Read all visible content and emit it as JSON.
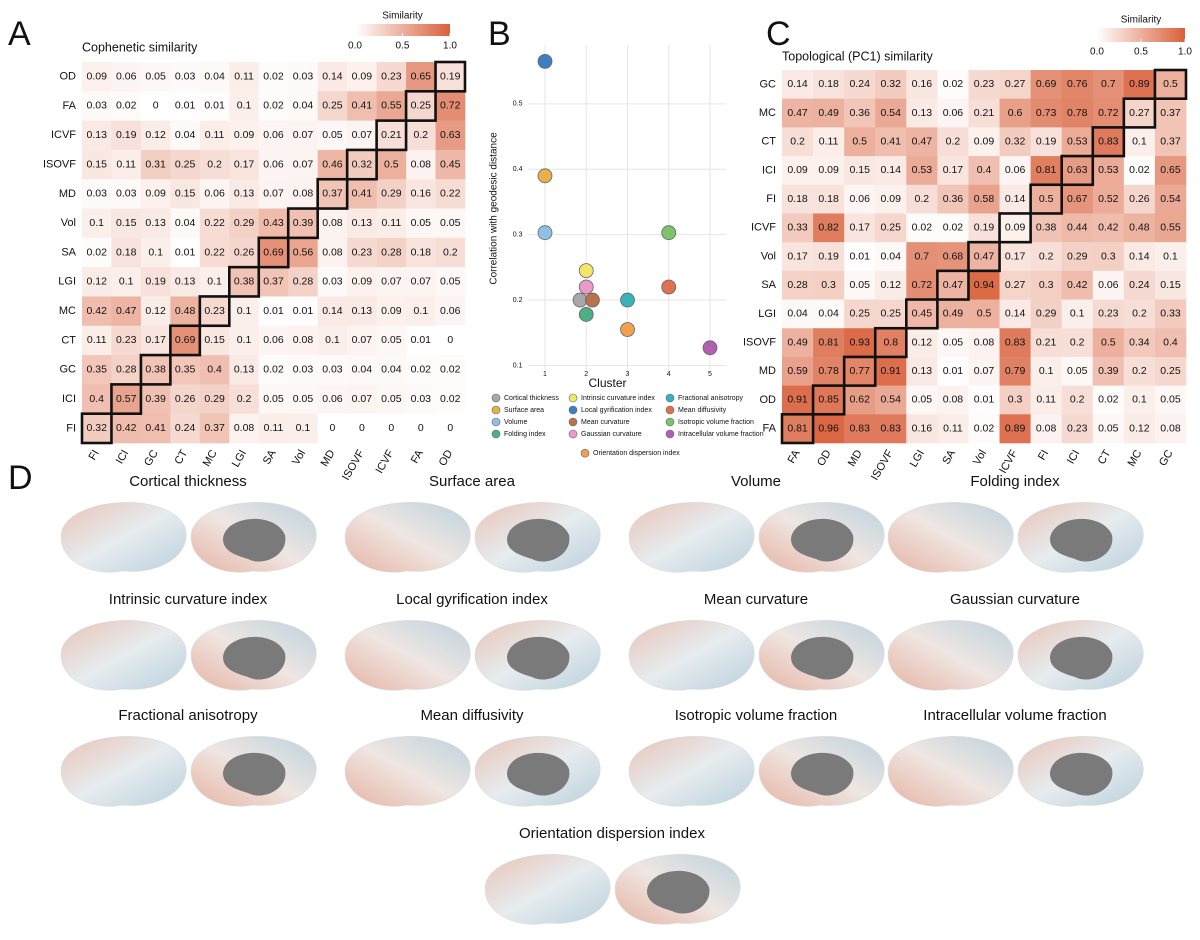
{
  "panels": [
    "A",
    "B",
    "C",
    "D"
  ],
  "chart_data": [
    {
      "type": "heatmap",
      "title": "Cophenetic similarity",
      "rows": [
        "OD",
        "FA",
        "ICVF",
        "ISOVF",
        "MD",
        "Vol",
        "SA",
        "LGI",
        "MC",
        "CT",
        "GC",
        "ICI",
        "FI"
      ],
      "columns": [
        "FI",
        "ICI",
        "GC",
        "CT",
        "MC",
        "LGI",
        "SA",
        "Vol",
        "MD",
        "ISOVF",
        "ICVF",
        "FA",
        "OD"
      ],
      "values": [
        [
          0.09,
          0.06,
          0.05,
          0.03,
          0.04,
          0.11,
          0.02,
          0.03,
          0.14,
          0.09,
          0.23,
          0.65,
          0.19
        ],
        [
          0.03,
          0.02,
          0,
          0.01,
          0.01,
          0.1,
          0.02,
          0.04,
          0.25,
          0.41,
          0.55,
          0.25,
          0.72
        ],
        [
          0.13,
          0.19,
          0.12,
          0.04,
          0.11,
          0.09,
          0.06,
          0.07,
          0.05,
          0.07,
          0.21,
          0.2,
          0.63
        ],
        [
          0.15,
          0.11,
          0.31,
          0.25,
          0.2,
          0.17,
          0.06,
          0.07,
          0.46,
          0.32,
          0.5,
          0.08,
          0.45
        ],
        [
          0.03,
          0.03,
          0.09,
          0.15,
          0.06,
          0.13,
          0.07,
          0.08,
          0.37,
          0.41,
          0.29,
          0.16,
          0.22
        ],
        [
          0.1,
          0.15,
          0.13,
          0.04,
          0.22,
          0.29,
          0.43,
          0.39,
          0.08,
          0.13,
          0.11,
          0.05,
          0.05
        ],
        [
          0.02,
          0.18,
          0.1,
          0.01,
          0.22,
          0.26,
          0.69,
          0.56,
          0.08,
          0.23,
          0.28,
          0.18,
          0.2
        ],
        [
          0.12,
          0.1,
          0.19,
          0.13,
          0.1,
          0.38,
          0.37,
          0.28,
          0.03,
          0.09,
          0.07,
          0.07,
          0.05
        ],
        [
          0.42,
          0.47,
          0.12,
          0.48,
          0.23,
          0.1,
          0.01,
          0.01,
          0.14,
          0.13,
          0.09,
          0.1,
          0.06
        ],
        [
          0.11,
          0.23,
          0.17,
          0.69,
          0.15,
          0.1,
          0.06,
          0.08,
          0.1,
          0.07,
          0.05,
          0.01,
          0
        ],
        [
          0.35,
          0.28,
          0.38,
          0.35,
          0.4,
          0.13,
          0.02,
          0.03,
          0.03,
          0.04,
          0.04,
          0.02,
          0.02
        ],
        [
          0.4,
          0.57,
          0.39,
          0.26,
          0.29,
          0.2,
          0.05,
          0.05,
          0.06,
          0.07,
          0.05,
          0.03,
          0.02
        ],
        [
          0.32,
          0.42,
          0.41,
          0.24,
          0.37,
          0.08,
          0.11,
          0.1,
          0,
          0,
          0,
          0,
          0
        ]
      ],
      "vlim": [
        0,
        1
      ],
      "colors": [
        "#ffffff",
        "#d9603b"
      ],
      "colorbar": {
        "label": "Similarity",
        "ticks": [
          {
            "value": 0,
            "label": "0.0"
          },
          0.5,
          {
            "value": 1,
            "label": "1.0"
          }
        ]
      }
    },
    {
      "type": "scatter",
      "xlabel": "Cluster",
      "ylabel": "Correlation with geodesic distance",
      "xlim": [
        0.6,
        5.4
      ],
      "ylim": [
        0.09,
        0.59
      ],
      "xticks": [
        1,
        2,
        3,
        4,
        5
      ],
      "yticks": [
        0.1,
        0.2,
        0.3,
        0.4,
        0.5
      ],
      "grid": true,
      "series": [
        {
          "name": "Cortical thickness",
          "color": "#a8a8a8",
          "x": [
            1.85
          ],
          "values": [
            0.2
          ]
        },
        {
          "name": "Surface area",
          "color": "#e8b04a",
          "x": [
            1
          ],
          "values": [
            0.39
          ]
        },
        {
          "name": "Volume",
          "color": "#8ec0e8",
          "x": [
            1
          ],
          "values": [
            0.303
          ]
        },
        {
          "name": "Folding index",
          "color": "#4fae86",
          "x": [
            2
          ],
          "values": [
            0.178
          ]
        },
        {
          "name": "Intrinsic curvature index",
          "color": "#f3e46a",
          "x": [
            2
          ],
          "values": [
            0.245
          ]
        },
        {
          "name": "Local gyrification index",
          "color": "#3c80c2",
          "x": [
            1
          ],
          "values": [
            0.565
          ]
        },
        {
          "name": "Mean curvature",
          "color": "#b8734a",
          "x": [
            2.15
          ],
          "values": [
            0.2
          ]
        },
        {
          "name": "Gaussian curvature",
          "color": "#e89ac8",
          "x": [
            2
          ],
          "values": [
            0.22
          ]
        },
        {
          "name": "Fractional anisotropy",
          "color": "#3ab3b8",
          "x": [
            3
          ],
          "values": [
            0.2
          ]
        },
        {
          "name": "Mean diffusivity",
          "color": "#e07050",
          "x": [
            4
          ],
          "values": [
            0.22
          ]
        },
        {
          "name": "Isotropic volume fraction",
          "color": "#7cc36a",
          "x": [
            4
          ],
          "values": [
            0.303
          ]
        },
        {
          "name": "Intracellular volume fraction",
          "color": "#b060b0",
          "x": [
            5
          ],
          "values": [
            0.127
          ]
        },
        {
          "name": "Orientation dispersion index",
          "color": "#f0a050",
          "x": [
            3
          ],
          "values": [
            0.155
          ]
        }
      ]
    },
    {
      "type": "heatmap",
      "title": "Topological (PC1) similarity",
      "rows": [
        "GC",
        "MC",
        "CT",
        "ICI",
        "FI",
        "ICVF",
        "Vol",
        "SA",
        "LGI",
        "ISOVF",
        "MD",
        "OD",
        "FA"
      ],
      "columns": [
        "FA",
        "OD",
        "MD",
        "ISOVF",
        "LGI",
        "SA",
        "Vol",
        "ICVF",
        "FI",
        "ICI",
        "CT",
        "MC",
        "GC"
      ],
      "values": [
        [
          0.14,
          0.18,
          0.24,
          0.32,
          0.16,
          0.02,
          0.23,
          0.27,
          0.69,
          0.76,
          0.7,
          0.89,
          0.5
        ],
        [
          0.47,
          0.49,
          0.36,
          0.54,
          0.13,
          0.06,
          0.21,
          0.6,
          0.73,
          0.78,
          0.72,
          0.27,
          0.37
        ],
        [
          0.2,
          0.11,
          0.5,
          0.41,
          0.47,
          0.2,
          0.09,
          0.32,
          0.19,
          0.53,
          0.83,
          0.1,
          0.37
        ],
        [
          0.09,
          0.09,
          0.15,
          0.14,
          0.53,
          0.17,
          0.4,
          0.06,
          0.81,
          0.63,
          0.53,
          0.02,
          0.65
        ],
        [
          0.18,
          0.18,
          0.06,
          0.09,
          0.2,
          0.36,
          0.58,
          0.14,
          0.5,
          0.67,
          0.52,
          0.26,
          0.54
        ],
        [
          0.33,
          0.82,
          0.17,
          0.25,
          0.02,
          0.02,
          0.19,
          0.09,
          0.38,
          0.44,
          0.42,
          0.48,
          0.55
        ],
        [
          0.17,
          0.19,
          0.01,
          0.04,
          0.7,
          0.68,
          0.47,
          0.17,
          0.2,
          0.29,
          0.3,
          0.14,
          0.1
        ],
        [
          0.28,
          0.3,
          0.05,
          0.12,
          0.72,
          0.47,
          0.94,
          0.27,
          0.3,
          0.42,
          0.06,
          0.24,
          0.15
        ],
        [
          0.04,
          0.04,
          0.25,
          0.25,
          0.45,
          0.49,
          0.5,
          0.14,
          0.29,
          0.1,
          0.23,
          0.2,
          0.33
        ],
        [
          0.49,
          0.81,
          0.93,
          0.8,
          0.12,
          0.05,
          0.08,
          0.83,
          0.21,
          0.2,
          0.5,
          0.34,
          0.4
        ],
        [
          0.59,
          0.78,
          0.77,
          0.91,
          0.13,
          0.01,
          0.07,
          0.79,
          0.1,
          0.05,
          0.39,
          0.2,
          0.25
        ],
        [
          0.91,
          0.85,
          0.62,
          0.54,
          0.05,
          0.08,
          0.01,
          0.3,
          0.11,
          0.2,
          0.02,
          0.1,
          0.05
        ],
        [
          0.81,
          0.96,
          0.83,
          0.83,
          0.16,
          0.11,
          0.02,
          0.89,
          0.08,
          0.23,
          0.05,
          0.12,
          0.08
        ]
      ],
      "vlim": [
        0,
        1
      ],
      "colors": [
        "#ffffff",
        "#d9603b"
      ],
      "colorbar": {
        "label": "Similarity",
        "ticks": [
          {
            "value": 0,
            "label": "0.0"
          },
          0.5,
          {
            "value": 1,
            "label": "1.0"
          }
        ]
      }
    }
  ],
  "brain_maps": {
    "titles": [
      "Cortical thickness",
      "Surface area",
      "Volume",
      "Folding index",
      "Intrinsic curvature index",
      "Local gyrification index",
      "Mean curvature",
      "Gaussian curvature",
      "Fractional anisotropy",
      "Mean diffusivity",
      "Isotropic volume fraction",
      "Intracellular volume fraction",
      "Orientation dispersion index"
    ]
  }
}
